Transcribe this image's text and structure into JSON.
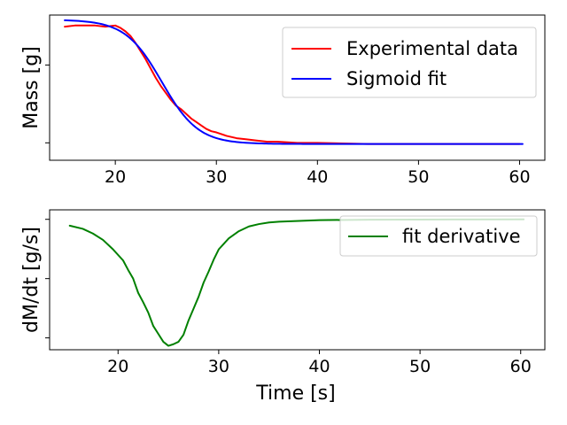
{
  "chart_data": [
    {
      "type": "line",
      "xlabel": "",
      "ylabel": "Mass [g]",
      "xlim": [
        13.5,
        62.5
      ],
      "ylim": [
        -0.15,
        1.1
      ],
      "xticks": [
        20,
        30,
        40,
        50,
        60
      ],
      "yticks": [
        0,
        0.67
      ],
      "ytick_labels_visible": false,
      "grid": false,
      "legend_position": "top-right",
      "series": [
        {
          "name": "Experimental data",
          "color": "#ff0000",
          "x": [
            15,
            16,
            17,
            18,
            19,
            20,
            20.5,
            21,
            21.5,
            22,
            22.5,
            23,
            23.5,
            24,
            24.5,
            25,
            25.5,
            26,
            26.5,
            27,
            27.5,
            28,
            28.5,
            29,
            29.5,
            30,
            31,
            32,
            33,
            34,
            35,
            36,
            38,
            40,
            45,
            50,
            55,
            60
          ],
          "y": [
            1.0,
            1.01,
            1.01,
            1.01,
            1.0,
            1.01,
            0.99,
            0.96,
            0.92,
            0.86,
            0.79,
            0.72,
            0.64,
            0.56,
            0.49,
            0.43,
            0.37,
            0.32,
            0.29,
            0.25,
            0.21,
            0.18,
            0.15,
            0.12,
            0.1,
            0.09,
            0.06,
            0.04,
            0.03,
            0.02,
            0.01,
            0.01,
            0.0,
            0.0,
            -0.01,
            -0.01,
            -0.01,
            -0.01
          ]
        },
        {
          "name": "Sigmoid fit",
          "color": "#0000ff",
          "sigmoid": {
            "lower": -0.01,
            "upper": 1.06,
            "center": 24.6,
            "scale": 1.8
          },
          "x_range": [
            15,
            60.3
          ]
        }
      ]
    },
    {
      "type": "line",
      "xlabel": "Time [s]",
      "ylabel": "dM/dt [g/s]",
      "xlim": [
        13.2,
        62.4
      ],
      "ylim": [
        -0.165,
        0.012
      ],
      "xticks": [
        20,
        30,
        40,
        50,
        60
      ],
      "yticks": [
        0,
        -0.075,
        -0.15
      ],
      "ytick_labels_visible": false,
      "grid": false,
      "legend_position": "top-right",
      "series": [
        {
          "name": "fit derivative",
          "color": "#008000",
          "x": [
            15.2,
            16.5,
            17.5,
            18.5,
            19.5,
            20.5,
            21,
            21.5,
            22,
            22.5,
            23,
            23.5,
            24,
            24.5,
            25,
            25.5,
            26,
            26.5,
            27,
            27.5,
            28,
            28.5,
            29,
            29.5,
            30,
            31,
            32,
            33,
            34,
            35,
            36,
            38,
            40,
            45,
            50,
            55,
            60.3
          ],
          "y": [
            -0.008,
            -0.012,
            -0.018,
            -0.026,
            -0.038,
            -0.052,
            -0.064,
            -0.075,
            -0.093,
            -0.105,
            -0.118,
            -0.135,
            -0.145,
            -0.155,
            -0.16,
            -0.158,
            -0.155,
            -0.146,
            -0.128,
            -0.113,
            -0.098,
            -0.08,
            -0.066,
            -0.051,
            -0.038,
            -0.024,
            -0.015,
            -0.009,
            -0.006,
            -0.004,
            -0.003,
            -0.002,
            -0.001,
            -0.0005,
            -0.0003,
            -0.0002,
            -0.0001
          ]
        }
      ]
    }
  ]
}
